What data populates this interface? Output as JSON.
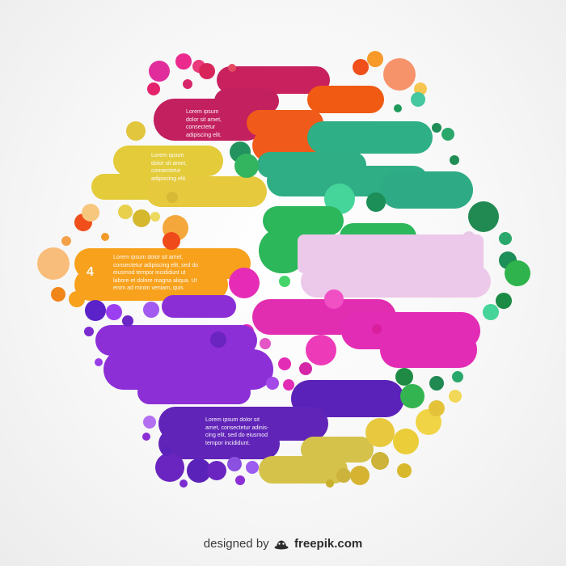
{
  "blocks": [
    {
      "id": "red",
      "color": "#c2205f",
      "label": "Lorem ipsum\ndolor sit amet,\nconsectetur\nadipiscing elit."
    },
    {
      "id": "yellow",
      "color": "#e3cb3a",
      "label": "Lorem ipsum\ndolor sit amet,\nconsectetur\nadipiscing elit."
    },
    {
      "id": "orange",
      "color": "#f7a11c",
      "number": "4",
      "label": "Lorem ipsum dolor sit amet,\nconsectetur adipiscing elit, sed do\neiusmod tempor incididunt ut\nlabore et dolore magna aliqua. Ut\nenim ad minim veniam, quis"
    },
    {
      "id": "purple",
      "color": "#6124b8",
      "label": "Lorem ipsum dolor sit\namet, consectetur adinis-\ncing elit, sed do eiusmod\ntempor incididunt."
    }
  ],
  "palette": {
    "magenta": "#e32cb5",
    "pink": "#e8c9e8",
    "green": "#2bb773",
    "teal": "#2fae86",
    "violet": "#8c2fd6",
    "red_orange": "#f05a1a",
    "orange": "#f7a11c",
    "yellow": "#e3cb3a"
  },
  "footer": {
    "prefix": "designed by",
    "brand": "freepik.com"
  }
}
